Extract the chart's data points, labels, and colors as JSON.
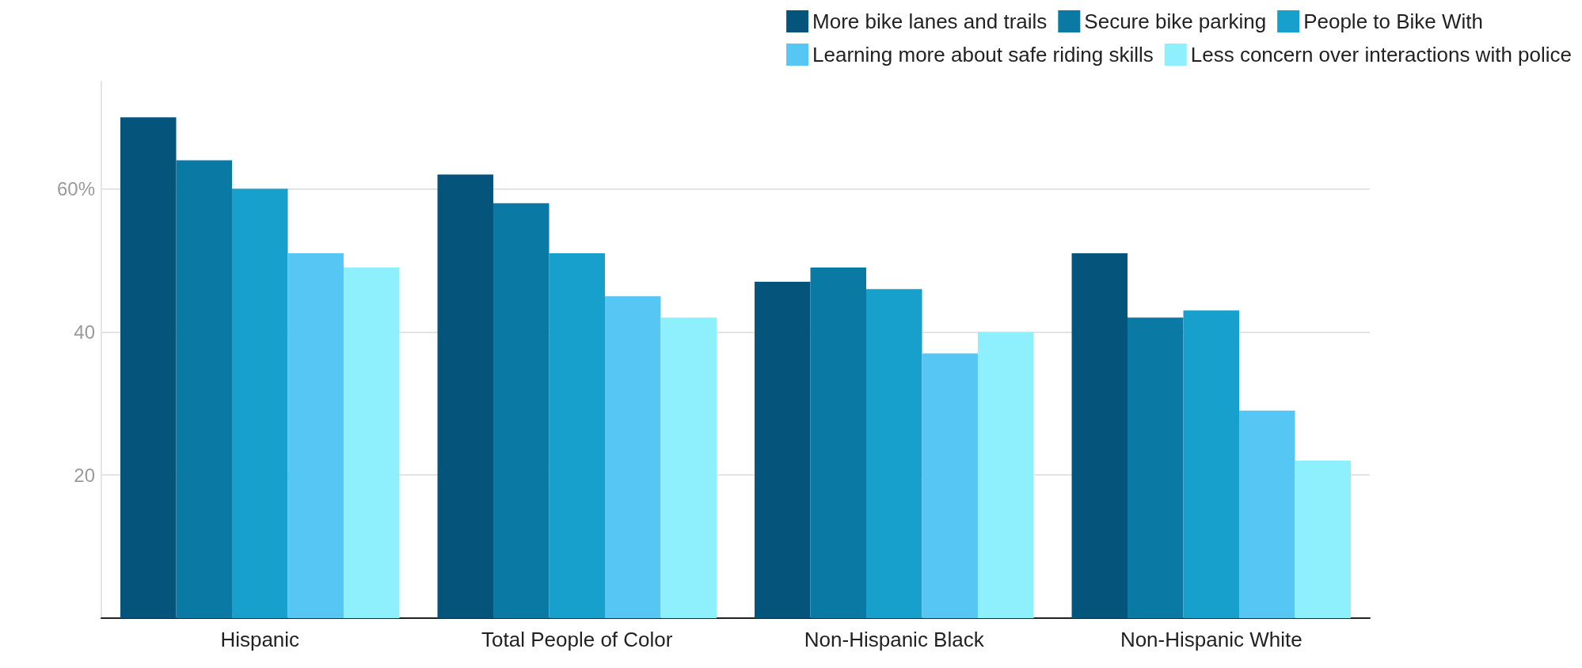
{
  "chart_data": {
    "type": "bar",
    "categories": [
      "Hispanic",
      "Total People of Color",
      "Non-Hispanic Black",
      "Non-Hispanic White"
    ],
    "series": [
      {
        "name": "More bike lanes and trails",
        "color": "#04547c",
        "values": [
          70,
          62,
          47,
          51
        ]
      },
      {
        "name": "Secure bike parking",
        "color": "#0a79a3",
        "values": [
          64,
          58,
          49,
          42
        ]
      },
      {
        "name": "People to Bike With",
        "color": "#17a0cc",
        "values": [
          60,
          51,
          46,
          43
        ]
      },
      {
        "name": "Learning more about safe riding skills",
        "color": "#56c7f5",
        "values": [
          51,
          45,
          37,
          29
        ]
      },
      {
        "name": "Less concern over interactions with police",
        "color": "#8ef0fc",
        "values": [
          49,
          42,
          40,
          22
        ]
      }
    ],
    "ylim": [
      0,
      75
    ],
    "yticks": [
      20,
      40,
      {
        "value": 60,
        "label": "60%"
      }
    ],
    "grid": "y",
    "legend": "top right"
  }
}
